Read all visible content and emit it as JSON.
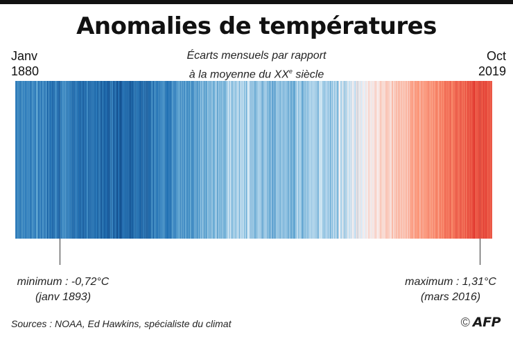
{
  "title": "Anomalies de températures",
  "subtitle": {
    "line1": "Écarts mensuels par rapport",
    "line2_prefix": "à la moyenne du XX",
    "line2_sup": "e",
    "line2_suffix": " siècle"
  },
  "start_label": {
    "month": "Janv",
    "year": "1880"
  },
  "end_label": {
    "month": "Oct",
    "year": "2019"
  },
  "minimum": {
    "label": "minimum : -0,72°C",
    "date": "(janv 1893)"
  },
  "maximum": {
    "label": "maximum : 1,31°C",
    "date": "(mars 2016)"
  },
  "source": "Sources : NOAA, Ed Hawkins, spécialiste du climat",
  "logo": {
    "copyright": "©",
    "text": "AFP"
  },
  "colors": {
    "cold_extreme": "#08306b",
    "cold": "#2171b5",
    "cool": "#6baed6",
    "neutral": "#f7fbff",
    "warm": "#fc9272",
    "hot": "#de2d26",
    "hot_extreme": "#a50f15"
  },
  "chart_data": {
    "type": "heatmap",
    "unit": "°C",
    "x_start": "1880-01",
    "x_end": "2019-10",
    "min": {
      "value": -0.72,
      "date": "1893-01"
    },
    "max": {
      "value": 1.31,
      "date": "2016-03"
    },
    "color_scale": {
      "min": -0.72,
      "max": 1.31
    },
    "period_means": [
      {
        "from": 1880,
        "to": 1889,
        "value": -0.35
      },
      {
        "from": 1890,
        "to": 1899,
        "value": -0.4
      },
      {
        "from": 1900,
        "to": 1909,
        "value": -0.46
      },
      {
        "from": 1910,
        "to": 1919,
        "value": -0.47
      },
      {
        "from": 1920,
        "to": 1929,
        "value": -0.35
      },
      {
        "from": 1930,
        "to": 1939,
        "value": -0.22
      },
      {
        "from": 1940,
        "to": 1949,
        "value": -0.08
      },
      {
        "from": 1950,
        "to": 1959,
        "value": -0.18
      },
      {
        "from": 1960,
        "to": 1969,
        "value": -0.13
      },
      {
        "from": 1970,
        "to": 1979,
        "value": -0.05
      },
      {
        "from": 1980,
        "to": 1989,
        "value": 0.15
      },
      {
        "from": 1990,
        "to": 1999,
        "value": 0.32
      },
      {
        "from": 2000,
        "to": 2009,
        "value": 0.52
      },
      {
        "from": 2010,
        "to": 2019,
        "value": 0.78
      }
    ]
  }
}
